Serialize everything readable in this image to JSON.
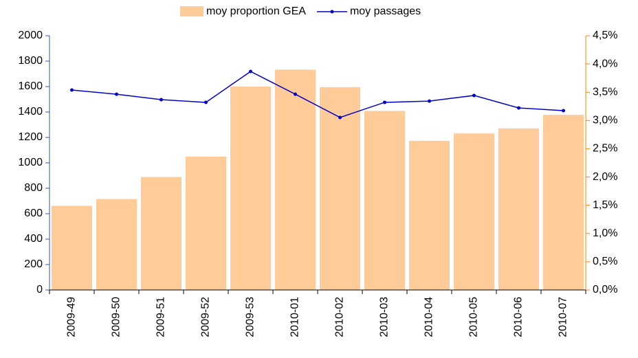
{
  "chart_data": {
    "type": "bar-line",
    "categories": [
      "2009-49",
      "2009-50",
      "2009-51",
      "2009-52",
      "2009-53",
      "2010-01",
      "2010-02",
      "2010-03",
      "2010-04",
      "2010-05",
      "2010-06",
      "2010-07"
    ],
    "series": [
      {
        "name": "moy proportion GEA",
        "type": "bar",
        "axis": "y2",
        "color": "#ffcc99",
        "values": [
          1.49,
          1.61,
          2.0,
          2.36,
          3.6,
          3.9,
          3.59,
          3.17,
          2.64,
          2.77,
          2.86,
          3.1
        ]
      },
      {
        "name": "moy passages",
        "type": "line",
        "axis": "y",
        "color": "#0000cc",
        "values": [
          1573,
          1540,
          1497,
          1476,
          1719,
          1540,
          1357,
          1476,
          1486,
          1530,
          1432,
          1411
        ]
      }
    ],
    "ylim": [
      0,
      2000
    ],
    "yticks": [
      0,
      200,
      400,
      600,
      800,
      1000,
      1200,
      1400,
      1600,
      1800,
      2000
    ],
    "y2lim": [
      0,
      4.5
    ],
    "y2ticks": [
      {
        "value": 0,
        "label": "0,0%"
      },
      {
        "value": 0.5,
        "label": "0,5%"
      },
      {
        "value": 1,
        "label": "1,0%"
      },
      {
        "value": 1.5,
        "label": "1,5%"
      },
      {
        "value": 2,
        "label": "2,0%"
      },
      {
        "value": 2.5,
        "label": "2,5%"
      },
      {
        "value": 3,
        "label": "3,0%"
      },
      {
        "value": 3.5,
        "label": "3,5%"
      },
      {
        "value": 4,
        "label": "4,0%"
      },
      {
        "value": 4.5,
        "label": "4,5%"
      }
    ],
    "y2_axis_color": "#ff8000",
    "y_axis_color": "#3355aa",
    "legend": "top"
  }
}
